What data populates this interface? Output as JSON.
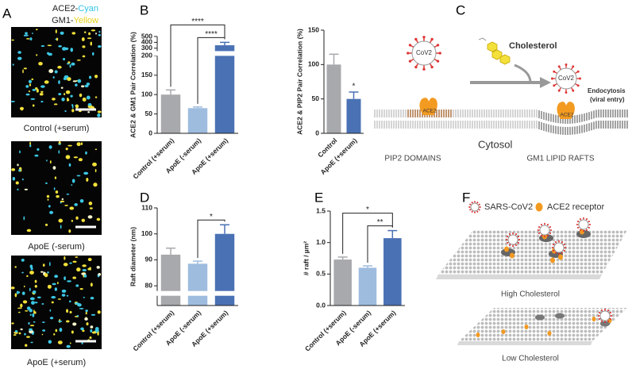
{
  "panel_letters": [
    "A",
    "B",
    "C",
    "D",
    "E",
    "F"
  ],
  "panel_a": {
    "legend": [
      [
        "ACE2-",
        "Cyan"
      ],
      [
        "GM1-",
        "Yellow"
      ]
    ],
    "captions": [
      "Control (+serum)",
      "ApoE (-serum)",
      "ApoE (+serum)"
    ]
  },
  "panel_c": {
    "virus": "CoV2",
    "cholesterol": "Cholesterol",
    "endocytosis": [
      "Endocytosis",
      "(viral entry)"
    ],
    "receptor": "ACE2",
    "cytosol": "Cytosol",
    "domains": [
      "PIP2 DOMAINS",
      "GM1 LIPID RAFTS"
    ]
  },
  "panel_f": {
    "legend": [
      "SARS-CoV2",
      "ACE2 receptor"
    ],
    "captions": [
      "High Cholesterol",
      "Low Cholesterol"
    ]
  },
  "chart_data": [
    {
      "type": "bar",
      "y_label": "ACE2 & GM1 Pair Correlation (%)",
      "categories": [
        "Control (+serum)",
        "ApoE (-serum)",
        "ApoE (+serum)"
      ],
      "values": [
        100,
        65,
        350
      ],
      "errors": [
        12,
        3,
        50
      ],
      "colors": [
        "#a7a9ac",
        "#9ebcde",
        "#4a71b4"
      ],
      "ylim": [
        0,
        500
      ],
      "ybreak": [
        200,
        250
      ],
      "yticks": [
        0,
        50,
        100,
        150,
        200,
        300,
        400,
        500
      ],
      "significance": [
        {
          "text": "****",
          "between": [
            "Control (+serum)",
            "ApoE (+serum)"
          ]
        },
        {
          "text": "****",
          "between": [
            "ApoE (-serum)",
            "ApoE (+serum)"
          ]
        }
      ]
    },
    {
      "type": "bar",
      "y_label": "ACE2 & PIP2 Pair Correlation (%)",
      "categories": [
        "Control",
        "ApoE (+serum)"
      ],
      "values": [
        100,
        50
      ],
      "errors": [
        15,
        10
      ],
      "colors": [
        "#a7a9ac",
        "#4a71b4"
      ],
      "ylim": [
        0,
        150
      ],
      "yticks": [
        0,
        50,
        100,
        150
      ],
      "significance": [
        {
          "text": "*",
          "between": [
            "ApoE (+serum)"
          ]
        }
      ]
    },
    {
      "type": "bar",
      "y_label": "Raft diameter (nm)",
      "categories": [
        "Control (+serum)",
        "ApoE (-serum)",
        "ApoE (+serum)"
      ],
      "values": [
        92,
        88.5,
        100
      ],
      "errors": [
        2.5,
        1,
        3.5
      ],
      "colors": [
        "#a7a9ac",
        "#9ebcde",
        "#4a71b4"
      ],
      "ylim": [
        0,
        110
      ],
      "ybreak": [
        70,
        78
      ],
      "yticks": [
        80,
        90,
        100,
        110
      ],
      "significance": [
        {
          "text": "*",
          "between": [
            "ApoE (-serum)",
            "ApoE (+serum)"
          ]
        }
      ]
    },
    {
      "type": "bar",
      "y_label": "# raft / µm²",
      "categories": [
        "Control (+serum)",
        "ApoE (-serum)",
        "ApoE (+serum)"
      ],
      "values": [
        0.73,
        0.6,
        1.07
      ],
      "errors": [
        0.04,
        0.03,
        0.12
      ],
      "colors": [
        "#a7a9ac",
        "#9ebcde",
        "#4a71b4"
      ],
      "ylim": [
        0,
        1.5
      ],
      "yticks": [
        {
          "value": 0,
          "label": "0.0"
        },
        {
          "value": 0.5,
          "label": "0.5"
        },
        {
          "value": 1,
          "label": "1.0"
        },
        {
          "value": 1.5,
          "label": "1.5"
        }
      ],
      "significance": [
        {
          "text": "*",
          "between": [
            "Control (+serum)",
            "ApoE (+serum)"
          ]
        },
        {
          "text": "**",
          "between": [
            "ApoE (-serum)",
            "ApoE (+serum)"
          ]
        }
      ]
    }
  ]
}
